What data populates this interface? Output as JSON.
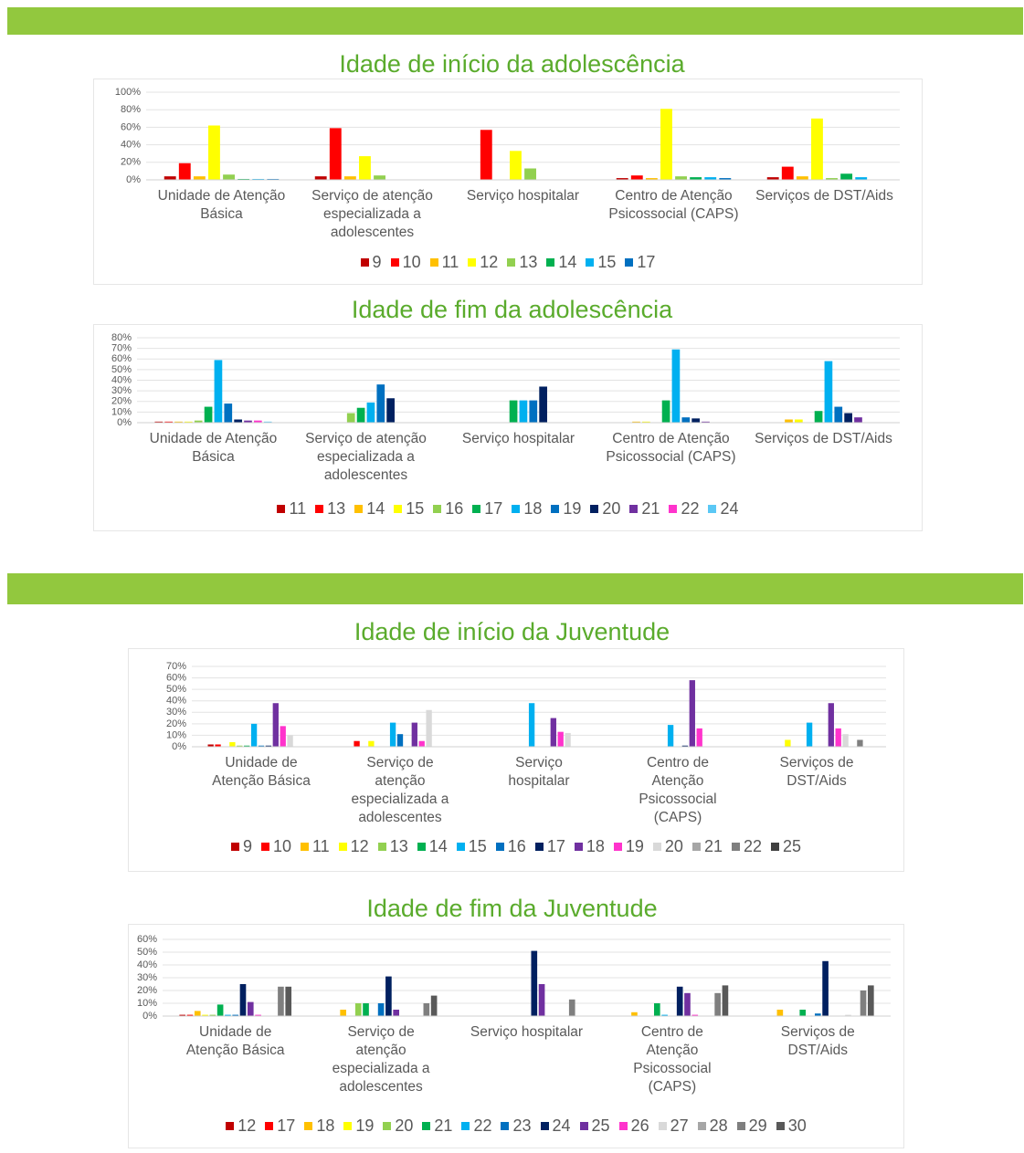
{
  "chart_data": [
    {
      "type": "bar",
      "title": "Idade de início da adolescência",
      "categories": [
        "Unidade de Atenção Básica",
        "Serviço de atenção especializada a adolescentes",
        "Serviço hospitalar",
        "Centro de Atenção Psicossocial (CAPS)",
        "Serviços de DST/Aids"
      ],
      "ylim": [
        0,
        100
      ],
      "yticks": [
        {
          "value": 0,
          "label": "0%"
        },
        {
          "value": 20,
          "label": "20%"
        },
        {
          "value": 40,
          "label": "40%"
        },
        {
          "value": 60,
          "label": "60%"
        },
        {
          "value": 80,
          "label": "80%"
        },
        {
          "value": 100,
          "label": "100%"
        }
      ],
      "grid": true,
      "legend": "bottom",
      "series": [
        {
          "name": "9",
          "color": "#c00000",
          "values": [
            4,
            4,
            0,
            2,
            3
          ]
        },
        {
          "name": "10",
          "color": "#ff0000",
          "values": [
            19,
            59,
            57,
            5,
            15
          ]
        },
        {
          "name": "11",
          "color": "#ffc000",
          "values": [
            4,
            4,
            0,
            2,
            4
          ]
        },
        {
          "name": "12",
          "color": "#ffff00",
          "values": [
            62,
            27,
            33,
            81,
            70
          ]
        },
        {
          "name": "13",
          "color": "#92d050",
          "values": [
            6,
            5,
            13,
            4,
            2
          ]
        },
        {
          "name": "14",
          "color": "#00b050",
          "values": [
            1,
            0,
            0,
            3,
            7
          ]
        },
        {
          "name": "15",
          "color": "#00b0f0",
          "values": [
            1,
            0,
            0,
            3,
            3
          ]
        },
        {
          "name": "17",
          "color": "#0070c0",
          "values": [
            1,
            0,
            0,
            2,
            0
          ]
        }
      ]
    },
    {
      "type": "bar",
      "title": "Idade de fim da adolescência",
      "categories": [
        "Unidade de Atenção Básica",
        "Serviço de atenção especializada a adolescentes",
        "Serviço hospitalar",
        "Centro de Atenção Psicossocial (CAPS)",
        "Serviços de DST/Aids"
      ],
      "ylim": [
        0,
        80
      ],
      "yticks": [
        {
          "value": 0,
          "label": "0%"
        },
        {
          "value": 10,
          "label": "10%"
        },
        {
          "value": 20,
          "label": "20%"
        },
        {
          "value": 30,
          "label": "30%"
        },
        {
          "value": 40,
          "label": "40%"
        },
        {
          "value": 50,
          "label": "50%"
        },
        {
          "value": 60,
          "label": "60%"
        },
        {
          "value": 70,
          "label": "70%"
        },
        {
          "value": 80,
          "label": "80%"
        }
      ],
      "grid": true,
      "legend": "bottom",
      "series": [
        {
          "name": "11",
          "color": "#c00000",
          "values": [
            1,
            0,
            0,
            0,
            0
          ]
        },
        {
          "name": "13",
          "color": "#ff0000",
          "values": [
            1,
            0,
            0,
            0,
            0
          ]
        },
        {
          "name": "14",
          "color": "#ffc000",
          "values": [
            1,
            0,
            0,
            1,
            3
          ]
        },
        {
          "name": "15",
          "color": "#ffff00",
          "values": [
            1,
            0,
            0,
            1,
            3
          ]
        },
        {
          "name": "16",
          "color": "#92d050",
          "values": [
            2,
            9,
            0,
            0,
            0
          ]
        },
        {
          "name": "17",
          "color": "#00b050",
          "values": [
            15,
            14,
            21,
            21,
            11
          ]
        },
        {
          "name": "18",
          "color": "#00b0f0",
          "values": [
            59,
            19,
            21,
            69,
            58
          ]
        },
        {
          "name": "19",
          "color": "#0070c0",
          "values": [
            18,
            36,
            21,
            5,
            15
          ]
        },
        {
          "name": "20",
          "color": "#002060",
          "values": [
            3,
            23,
            34,
            4,
            9
          ]
        },
        {
          "name": "21",
          "color": "#7030a0",
          "values": [
            2,
            0,
            0,
            1,
            5
          ]
        },
        {
          "name": "22",
          "color": "#ff33cc",
          "values": [
            2,
            0,
            0,
            0,
            0
          ]
        },
        {
          "name": "24",
          "color": "#5bc8f5",
          "values": [
            1,
            0,
            0,
            0,
            0
          ]
        }
      ]
    },
    {
      "type": "bar",
      "title": "Idade de início da Juventude",
      "categories": [
        "Unidade de Atenção Básica",
        "Serviço de atenção especializada a adolescentes",
        "Serviço hospitalar",
        "Centro de Atenção Psicossocial (CAPS)",
        "Serviços de DST/Aids"
      ],
      "ylim": [
        0,
        70
      ],
      "yticks": [
        {
          "value": 0,
          "label": "0%"
        },
        {
          "value": 10,
          "label": "10%"
        },
        {
          "value": 20,
          "label": "20%"
        },
        {
          "value": 30,
          "label": "30%"
        },
        {
          "value": 40,
          "label": "40%"
        },
        {
          "value": 50,
          "label": "50%"
        },
        {
          "value": 60,
          "label": "60%"
        },
        {
          "value": 70,
          "label": "70%"
        }
      ],
      "grid": true,
      "legend": "bottom",
      "series": [
        {
          "name": "9",
          "color": "#c00000",
          "values": [
            2,
            0,
            0,
            0,
            0
          ]
        },
        {
          "name": "10",
          "color": "#ff0000",
          "values": [
            2,
            5,
            0,
            0,
            0
          ]
        },
        {
          "name": "11",
          "color": "#ffc000",
          "values": [
            0,
            0,
            0,
            0,
            0
          ]
        },
        {
          "name": "12",
          "color": "#ffff00",
          "values": [
            4,
            5,
            0,
            0,
            6
          ]
        },
        {
          "name": "13",
          "color": "#92d050",
          "values": [
            1,
            0,
            0,
            0,
            0
          ]
        },
        {
          "name": "14",
          "color": "#00b050",
          "values": [
            1,
            0,
            0,
            0,
            0
          ]
        },
        {
          "name": "15",
          "color": "#00b0f0",
          "values": [
            20,
            21,
            38,
            19,
            21
          ]
        },
        {
          "name": "16",
          "color": "#0070c0",
          "values": [
            1,
            11,
            0,
            0,
            0
          ]
        },
        {
          "name": "17",
          "color": "#002060",
          "values": [
            1,
            0,
            0,
            1,
            0
          ]
        },
        {
          "name": "18",
          "color": "#7030a0",
          "values": [
            38,
            21,
            25,
            58,
            38
          ]
        },
        {
          "name": "19",
          "color": "#ff33cc",
          "values": [
            18,
            5,
            13,
            16,
            16
          ]
        },
        {
          "name": "20",
          "color": "#d9d9d9",
          "values": [
            10,
            32,
            12,
            0,
            11
          ]
        },
        {
          "name": "21",
          "color": "#a6a6a6",
          "values": [
            0,
            0,
            0,
            0,
            0
          ]
        },
        {
          "name": "22",
          "color": "#7f7f7f",
          "values": [
            0,
            0,
            0,
            0,
            6
          ]
        },
        {
          "name": "25",
          "color": "#404040",
          "values": [
            0,
            0,
            0,
            0,
            0
          ]
        }
      ]
    },
    {
      "type": "bar",
      "title": "Idade de fim da Juventude",
      "categories": [
        "Unidade de Atenção Básica",
        "Serviço de atenção especializada a adolescentes",
        "Serviço hospitalar",
        "Centro de Atenção Psicossocial (CAPS)",
        "Serviços de DST/Aids"
      ],
      "ylim": [
        0,
        60
      ],
      "yticks": [
        {
          "value": 0,
          "label": "0%"
        },
        {
          "value": 10,
          "label": "10%"
        },
        {
          "value": 20,
          "label": "20%"
        },
        {
          "value": 30,
          "label": "30%"
        },
        {
          "value": 40,
          "label": "40%"
        },
        {
          "value": 50,
          "label": "50%"
        },
        {
          "value": 60,
          "label": "60%"
        }
      ],
      "grid": true,
      "legend": "bottom",
      "series": [
        {
          "name": "12",
          "color": "#c00000",
          "values": [
            1,
            0,
            0,
            0,
            0
          ]
        },
        {
          "name": "17",
          "color": "#ff0000",
          "values": [
            1,
            0,
            0,
            0,
            0
          ]
        },
        {
          "name": "18",
          "color": "#ffc000",
          "values": [
            4,
            5,
            0,
            3,
            5
          ]
        },
        {
          "name": "19",
          "color": "#ffff00",
          "values": [
            1,
            0,
            0,
            0,
            0
          ]
        },
        {
          "name": "20",
          "color": "#92d050",
          "values": [
            1,
            10,
            0,
            0,
            0
          ]
        },
        {
          "name": "21",
          "color": "#00b050",
          "values": [
            9,
            10,
            0,
            10,
            5
          ]
        },
        {
          "name": "22",
          "color": "#00b0f0",
          "values": [
            1,
            0,
            0,
            1,
            0
          ]
        },
        {
          "name": "23",
          "color": "#0070c0",
          "values": [
            1,
            10,
            0,
            0,
            2
          ]
        },
        {
          "name": "24",
          "color": "#002060",
          "values": [
            25,
            31,
            51,
            23,
            43
          ]
        },
        {
          "name": "25",
          "color": "#7030a0",
          "values": [
            11,
            5,
            25,
            18,
            0
          ]
        },
        {
          "name": "26",
          "color": "#ff33cc",
          "values": [
            1,
            0,
            0,
            1,
            0
          ]
        },
        {
          "name": "27",
          "color": "#d9d9d9",
          "values": [
            0,
            0,
            0,
            0,
            1
          ]
        },
        {
          "name": "28",
          "color": "#a6a6a6",
          "values": [
            0,
            0,
            0,
            0,
            0
          ]
        },
        {
          "name": "29",
          "color": "#7f7f7f",
          "values": [
            23,
            10,
            13,
            18,
            20
          ]
        },
        {
          "name": "30",
          "color": "#595959",
          "values": [
            23,
            16,
            0,
            24,
            24
          ]
        }
      ]
    }
  ]
}
